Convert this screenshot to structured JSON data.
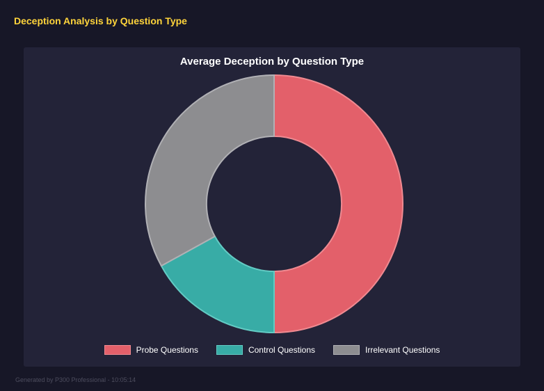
{
  "page": {
    "title": "Deception Analysis by Question Type",
    "footer": "Generated by P300 Professional - 10:05:14"
  },
  "chart_data": {
    "type": "pie",
    "subtype": "donut",
    "title": "Average Deception by Question Type",
    "labels": [
      "Probe Questions",
      "Control Questions",
      "Irrelevant Questions"
    ],
    "values": [
      50,
      17,
      33
    ],
    "unit": "percent",
    "colors": [
      "#e3606a",
      "#38aca6",
      "#8d8d90"
    ],
    "border_colors": [
      "#ef8a91",
      "#63cbc4",
      "#b1b1b5"
    ],
    "start_angle_deg": 0,
    "inner_radius_ratio": 0.525,
    "legend_position": "bottom",
    "background": "#232338"
  },
  "colors": {
    "page_background": "#171727",
    "panel_background": "#232338",
    "accent_title": "#ffd43b",
    "chart_title": "#ffffff",
    "footer": "#4d4d5e"
  }
}
